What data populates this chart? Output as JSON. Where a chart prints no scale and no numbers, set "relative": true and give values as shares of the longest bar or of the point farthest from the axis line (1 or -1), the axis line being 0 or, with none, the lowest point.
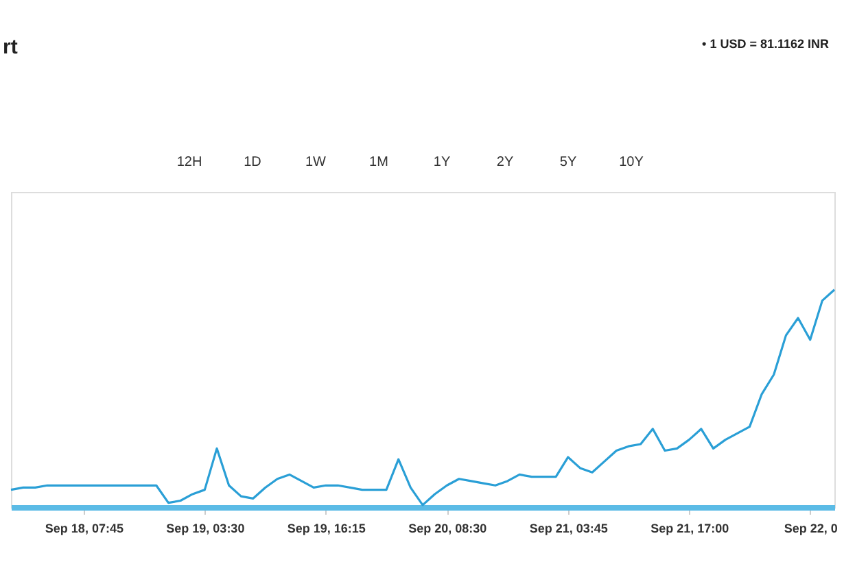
{
  "chart_data": {
    "type": "line",
    "title": "rt",
    "relative": true,
    "annotations": [
      "• 1 USD = 81.1162 INR",
      "12H",
      "1D",
      "1W",
      "1M",
      "1Y",
      "2Y",
      "5Y",
      "10Y"
    ],
    "categories": [
      null,
      null,
      null,
      null,
      null,
      null,
      "Sep 18, 07:45",
      null,
      null,
      null,
      null,
      null,
      null,
      null,
      null,
      null,
      "Sep 19, 03:30",
      null,
      null,
      null,
      null,
      null,
      null,
      null,
      null,
      null,
      "Sep 19, 16:15",
      null,
      null,
      null,
      null,
      null,
      null,
      null,
      null,
      null,
      "Sep 20, 08:30",
      null,
      null,
      null,
      null,
      null,
      null,
      null,
      null,
      null,
      "Sep 21, 03:45",
      null,
      null,
      null,
      null,
      null,
      null,
      null,
      null,
      null,
      "Sep 21, 17:00",
      null,
      null,
      null,
      null,
      null,
      null,
      null,
      null,
      null,
      "Sep 22, 0",
      null,
      null
    ],
    "marker": "none",
    "line_style": "solid",
    "series": [
      {
        "color": "#2a9fd6",
        "values": [
          0.08,
          0.09,
          0.09,
          0.1,
          0.1,
          0.1,
          0.1,
          0.1,
          0.1,
          0.1,
          0.1,
          0.1,
          0.1,
          0.02,
          0.03,
          0.06,
          0.08,
          0.27,
          0.1,
          0.05,
          0.04,
          0.09,
          0.13,
          0.15,
          0.12,
          0.09,
          0.1,
          0.1,
          0.09,
          0.08,
          0.08,
          0.08,
          0.22,
          0.09,
          0.01,
          0.06,
          0.1,
          0.13,
          0.12,
          0.11,
          0.1,
          0.12,
          0.15,
          0.14,
          0.14,
          0.14,
          0.23,
          0.18,
          0.16,
          0.21,
          0.26,
          0.28,
          0.29,
          0.36,
          0.26,
          0.27,
          0.31,
          0.36,
          0.27,
          0.31,
          0.34,
          0.37,
          0.52,
          0.61,
          0.79,
          0.87,
          0.77,
          0.95,
          1.0
        ]
      }
    ]
  }
}
